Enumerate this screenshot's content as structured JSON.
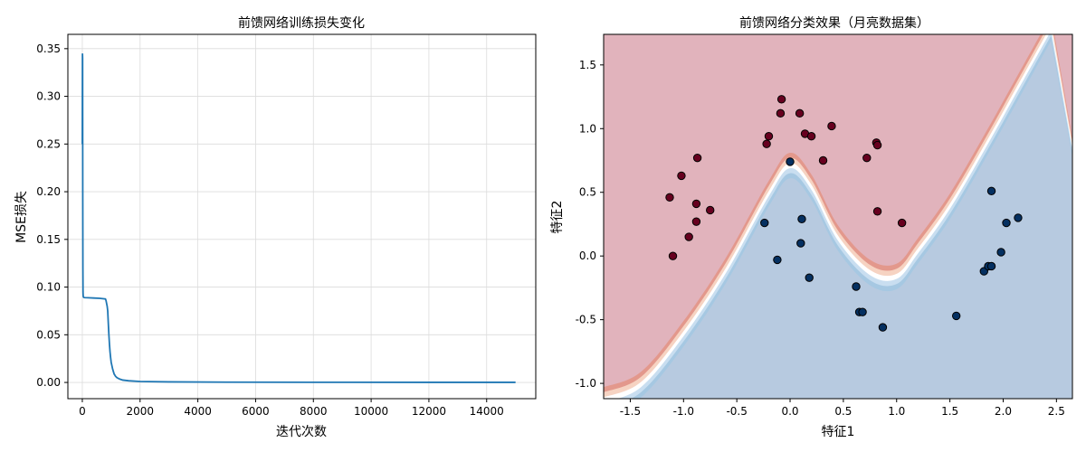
{
  "chart_data": [
    {
      "type": "line",
      "title": "前馈网络训练损失变化",
      "xlabel": "迭代次数",
      "ylabel": "MSE损失",
      "xlim": [
        -500,
        15700
      ],
      "ylim": [
        -0.017,
        0.365
      ],
      "xticks": [
        0,
        2000,
        4000,
        6000,
        8000,
        10000,
        12000,
        14000
      ],
      "yticks": [
        0.0,
        0.05,
        0.1,
        0.15,
        0.2,
        0.25,
        0.3,
        0.35
      ],
      "grid": true,
      "line_color": "#1f77b4",
      "series": [
        {
          "x": [
            0,
            5,
            10,
            15,
            20,
            25,
            30,
            35,
            40,
            50,
            60,
            100,
            200,
            400,
            600,
            800,
            820,
            840,
            860,
            880,
            900,
            920,
            940,
            960,
            980,
            1000,
            1050,
            1100,
            1150,
            1200,
            1300,
            1400,
            1600,
            2000,
            3000,
            5000,
            8000,
            12000,
            15000
          ],
          "y": [
            0.25,
            0.345,
            0.34,
            0.2,
            0.12,
            0.095,
            0.091,
            0.09,
            0.0895,
            0.0892,
            0.089,
            0.0889,
            0.0888,
            0.0885,
            0.0882,
            0.0875,
            0.086,
            0.083,
            0.08,
            0.075,
            0.062,
            0.05,
            0.04,
            0.032,
            0.026,
            0.021,
            0.014,
            0.009,
            0.0065,
            0.005,
            0.0035,
            0.0025,
            0.0018,
            0.001,
            0.0006,
            0.0003,
            0.0002,
            0.0001,
            0.0001
          ]
        }
      ]
    },
    {
      "type": "scatter",
      "title": "前馈网络分类效果（月亮数据集）",
      "xlabel": "特征1",
      "ylabel": "特征2",
      "xlim": [
        -1.75,
        2.65
      ],
      "ylim": [
        -1.12,
        1.74
      ],
      "xticks": [
        -1.5,
        -1.0,
        -0.5,
        0.0,
        0.5,
        1.0,
        1.5,
        2.0,
        2.5
      ],
      "yticks": [
        -1.0,
        -0.5,
        0.0,
        0.5,
        1.0,
        1.5
      ],
      "xticklabels": [
        "-1.5",
        "-1.0",
        "-0.5",
        "0.0",
        "0.5",
        "1.0",
        "1.5",
        "2.0",
        "2.5"
      ],
      "yticklabels": [
        "-1.0",
        "-0.5",
        "0.0",
        "0.5",
        "1.0",
        "1.5"
      ],
      "grid": false,
      "region_colors": {
        "class0": "#e1b3bc",
        "class1": "#b7cae0",
        "band": [
          "#e3988c",
          "#f6d3c2",
          "#ffffff",
          "#c9def0",
          "#a6c8e2"
        ]
      },
      "point_colors": {
        "class0": "#67001f",
        "class1": "#053061"
      },
      "boundary_control": [
        [
          -1.75,
          -1.12
        ],
        [
          -1.4,
          -1.0
        ],
        [
          -1.0,
          -0.6
        ],
        [
          -0.6,
          -0.1
        ],
        [
          -0.2,
          0.5
        ],
        [
          0.0,
          0.72
        ],
        [
          0.2,
          0.55
        ],
        [
          0.45,
          0.15
        ],
        [
          0.75,
          -0.12
        ],
        [
          1.0,
          -0.15
        ],
        [
          1.2,
          0.05
        ],
        [
          1.5,
          0.4
        ],
        [
          1.85,
          0.9
        ],
        [
          2.15,
          1.35
        ],
        [
          2.45,
          1.8
        ]
      ],
      "class0_points": [
        [
          -1.13,
          0.46
        ],
        [
          -1.1,
          0.0
        ],
        [
          -1.02,
          0.63
        ],
        [
          -0.95,
          0.15
        ],
        [
          -0.88,
          0.41
        ],
        [
          -0.88,
          0.27
        ],
        [
          -0.87,
          0.77
        ],
        [
          -0.75,
          0.36
        ],
        [
          -0.22,
          0.88
        ],
        [
          -0.2,
          0.94
        ],
        [
          -0.08,
          1.23
        ],
        [
          -0.09,
          1.12
        ],
        [
          0.09,
          1.12
        ],
        [
          0.14,
          0.96
        ],
        [
          0.2,
          0.94
        ],
        [
          0.31,
          0.75
        ],
        [
          0.39,
          1.02
        ],
        [
          0.72,
          0.77
        ],
        [
          0.81,
          0.89
        ],
        [
          0.82,
          0.87
        ],
        [
          0.82,
          0.35
        ],
        [
          1.05,
          0.26
        ]
      ],
      "class1_points": [
        [
          0.0,
          0.74
        ],
        [
          -0.24,
          0.26
        ],
        [
          -0.12,
          -0.03
        ],
        [
          0.1,
          0.1
        ],
        [
          0.11,
          0.29
        ],
        [
          0.18,
          -0.17
        ],
        [
          0.62,
          -0.24
        ],
        [
          0.65,
          -0.44
        ],
        [
          0.68,
          -0.44
        ],
        [
          0.87,
          -0.56
        ],
        [
          1.56,
          -0.47
        ],
        [
          1.82,
          -0.12
        ],
        [
          1.86,
          -0.08
        ],
        [
          1.89,
          -0.08
        ],
        [
          1.89,
          0.51
        ],
        [
          1.98,
          0.03
        ],
        [
          2.03,
          0.26
        ],
        [
          2.14,
          0.3
        ]
      ]
    }
  ]
}
